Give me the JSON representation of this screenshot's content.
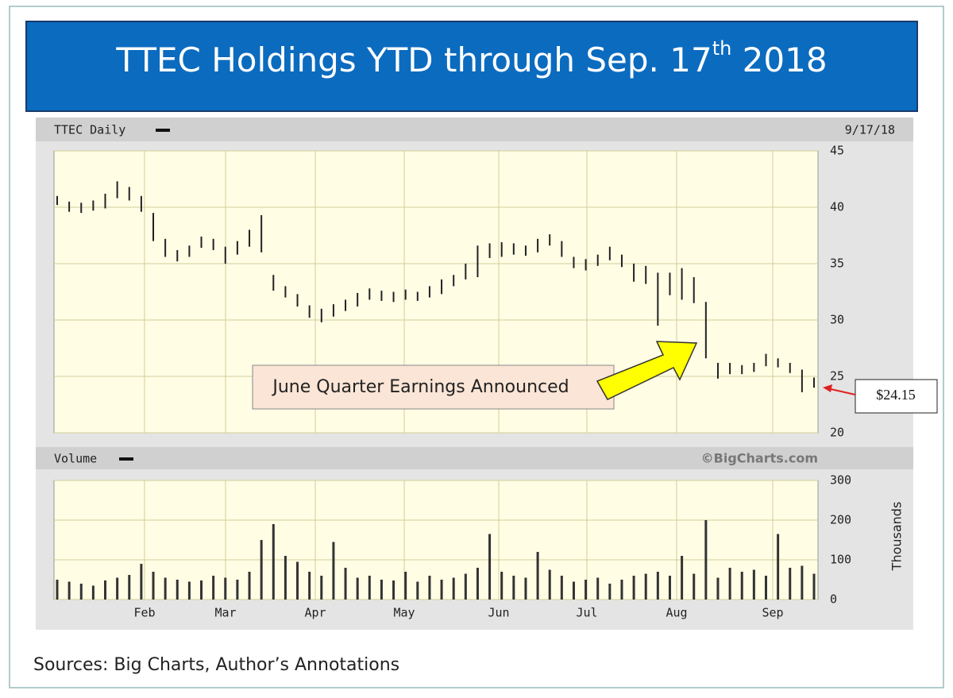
{
  "header": {
    "title": "TTEC Holdings   YTD through Sep. 17",
    "title_sup": "th",
    "title_end": " 2018"
  },
  "chart_data": [
    {
      "type": "hilo",
      "label": "TTEC Daily",
      "date": "9/17/18",
      "color": "#222222",
      "ylim": [
        20,
        45
      ],
      "yticks": [
        20,
        25,
        30,
        35,
        40,
        45
      ],
      "grid": true,
      "high": [
        41,
        40.5,
        40.4,
        40.6,
        41.2,
        42.3,
        41.8,
        41.0,
        39.5,
        37.2,
        36.2,
        36.6,
        37.4,
        37.2,
        36.5,
        37.0,
        38.0,
        39.3,
        34.0,
        33.0,
        32.3,
        31.3,
        31.0,
        31.4,
        31.8,
        32.4,
        32.8,
        32.6,
        32.5,
        32.7,
        32.5,
        33.0,
        33.6,
        34.0,
        35.0,
        36.6,
        36.8,
        36.9,
        36.8,
        36.6,
        37.2,
        37.6,
        37.0,
        35.6,
        35.4,
        35.8,
        36.5,
        35.8,
        35.0,
        34.8,
        34.2,
        34.2,
        34.6,
        33.8,
        31.6,
        26.2,
        26.2,
        26.0,
        26.2,
        27.0,
        26.6,
        26.2,
        25.6,
        24.9
      ],
      "low": [
        40.2,
        39.6,
        39.5,
        39.7,
        39.9,
        40.8,
        40.6,
        39.6,
        37.0,
        35.6,
        35.2,
        35.6,
        36.4,
        36.2,
        35.0,
        35.8,
        36.5,
        36.0,
        32.6,
        32.0,
        31.2,
        30.2,
        29.8,
        30.3,
        30.8,
        31.2,
        31.8,
        31.7,
        31.6,
        31.8,
        31.7,
        32.0,
        32.3,
        33.0,
        33.6,
        33.8,
        35.5,
        35.6,
        35.8,
        35.7,
        36.0,
        36.6,
        35.6,
        34.6,
        34.4,
        34.8,
        35.3,
        34.7,
        33.4,
        33.2,
        29.5,
        32.2,
        31.8,
        31.5,
        26.6,
        24.8,
        25.2,
        25.2,
        25.4,
        25.9,
        25.8,
        25.3,
        23.6,
        24.0
      ],
      "annotation": "June Quarter Earnings Announced",
      "price_label": {
        "value": 24.15,
        "label": "$24.15"
      }
    },
    {
      "type": "bar",
      "label": "Volume",
      "credit": "©BigCharts.com",
      "ylabel": "Thousands",
      "color": "#333333",
      "ylim": [
        0,
        300
      ],
      "yticks": [
        0,
        100,
        200,
        300
      ],
      "grid": true,
      "xticks": [
        "Feb",
        "Mar",
        "Apr",
        "May",
        "Jun",
        "Jul",
        "Aug",
        "Sep"
      ],
      "values": [
        50,
        45,
        40,
        35,
        48,
        55,
        62,
        90,
        70,
        55,
        50,
        45,
        48,
        60,
        55,
        50,
        70,
        150,
        190,
        110,
        95,
        70,
        60,
        145,
        80,
        55,
        60,
        50,
        48,
        70,
        45,
        60,
        50,
        55,
        65,
        80,
        165,
        70,
        60,
        55,
        120,
        75,
        60,
        45,
        50,
        55,
        40,
        50,
        60,
        65,
        70,
        60,
        110,
        65,
        200,
        55,
        80,
        70,
        75,
        60,
        165,
        80,
        85,
        65
      ]
    }
  ],
  "footer": "Sources: Big Charts, Author’s Annotations"
}
